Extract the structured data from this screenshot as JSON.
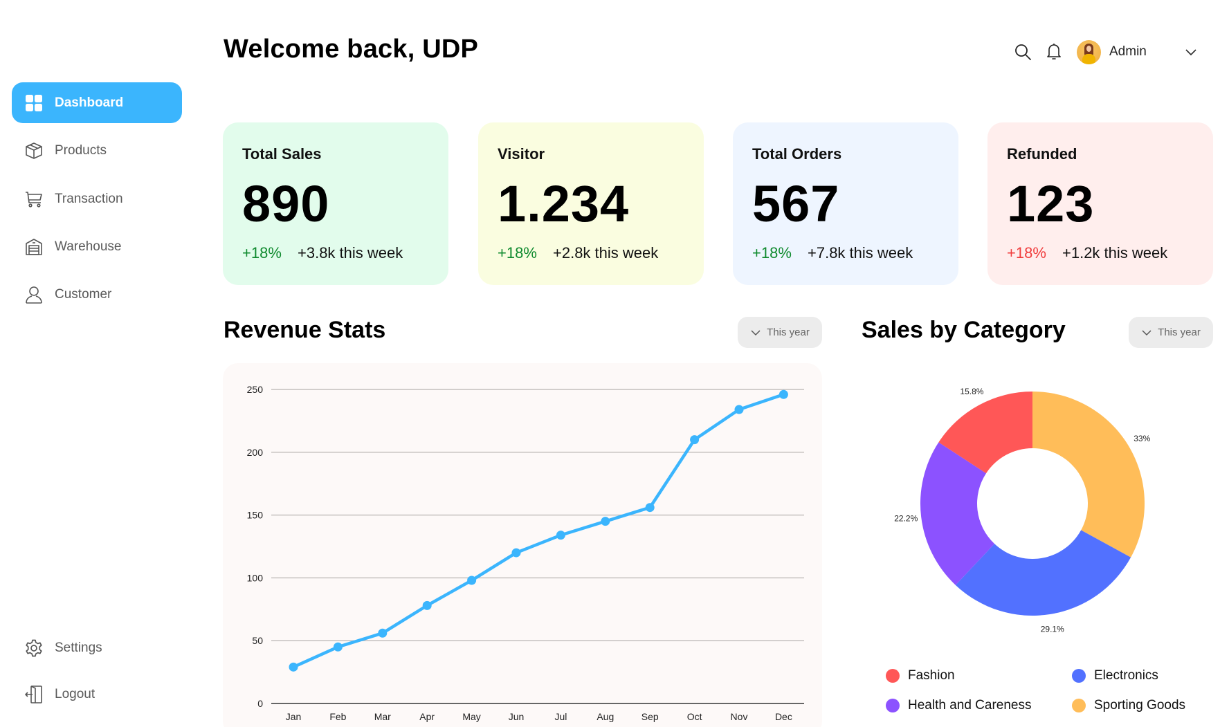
{
  "sidebar": {
    "items": [
      {
        "label": "Dashboard",
        "icon": "grid-icon",
        "active": true
      },
      {
        "label": "Products",
        "icon": "box-icon",
        "active": false
      },
      {
        "label": "Transaction",
        "icon": "cart-icon",
        "active": false
      },
      {
        "label": "Warehouse",
        "icon": "warehouse-icon",
        "active": false
      },
      {
        "label": "Customer",
        "icon": "user-icon",
        "active": false
      }
    ],
    "bottom_items": [
      {
        "label": "Settings",
        "icon": "gear-icon"
      },
      {
        "label": "Logout",
        "icon": "logout-icon"
      }
    ]
  },
  "header": {
    "title": "Welcome back, UDP",
    "user_name": "Admin",
    "icons": [
      "search-icon",
      "bell-icon",
      "chevron-down-icon"
    ]
  },
  "cards": [
    {
      "title": "Total Sales",
      "value": "890",
      "pct": "+18%",
      "week": "+3.8k this week",
      "bg": "#e2fcec",
      "pct_color": "#0f8a2e"
    },
    {
      "title": "Visitor",
      "value": "1.234",
      "pct": "+18%",
      "week": "+2.8k this week",
      "bg": "#fafde0",
      "pct_color": "#0f8a2e"
    },
    {
      "title": "Total Orders",
      "value": "567",
      "pct": "+18%",
      "week": "+7.8k this week",
      "bg": "#eef5ff",
      "pct_color": "#0f8a2e"
    },
    {
      "title": "Refunded",
      "value": "123",
      "pct": "+18%",
      "week": "+1.2k this week",
      "bg": "#ffeeed",
      "pct_color": "#f03c3c"
    }
  ],
  "revenue": {
    "title": "Revenue Stats",
    "filter_label": "This year"
  },
  "category": {
    "title": "Sales by Category",
    "filter_label": "This year"
  },
  "chart_data": [
    {
      "type": "line",
      "title": "Revenue Stats",
      "xlabel": "",
      "ylabel": "",
      "categories": [
        "Jan",
        "Feb",
        "Mar",
        "Apr",
        "May",
        "Jun",
        "Jul",
        "Aug",
        "Sep",
        "Oct",
        "Nov",
        "Dec"
      ],
      "values": [
        29,
        45,
        56,
        78,
        98,
        120,
        134,
        145,
        156,
        210,
        234,
        246
      ],
      "ylim": [
        0,
        250
      ],
      "yticks": [
        0,
        50,
        100,
        150,
        200,
        250
      ],
      "grid": true,
      "color": "#3bb5fd"
    },
    {
      "type": "pie",
      "title": "Sales by Category",
      "donut": true,
      "slices": [
        {
          "label": "Sporting Goods",
          "value": 33,
          "display": "33%",
          "color": "#ffbd59"
        },
        {
          "label": "Electronics",
          "value": 29.1,
          "display": "29.1%",
          "color": "#5271ff"
        },
        {
          "label": "Health and Careness",
          "value": 22.2,
          "display": "22.2%",
          "color": "#8c52ff"
        },
        {
          "label": "Fashion",
          "value": 15.8,
          "display": "15.8%",
          "color": "#ff5757"
        }
      ],
      "legend": [
        "Fashion",
        "Electronics",
        "Health and Careness",
        "Sporting Goods"
      ],
      "legend_position": "bottom"
    }
  ]
}
